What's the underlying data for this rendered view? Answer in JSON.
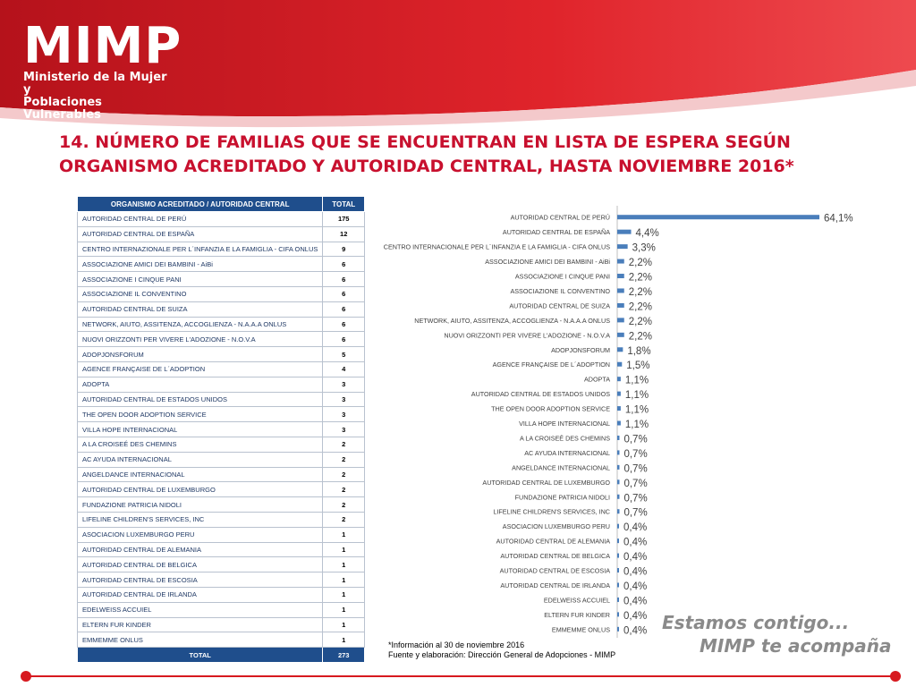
{
  "header": {
    "logo": "MIMP",
    "logo_sub1": "Ministerio de la Mujer y",
    "logo_sub2": "Poblaciones Vulnerables",
    "title_line1": "14. NÚMERO DE FAMILIAS QUE SE ENCUENTRAN EN LISTA DE ESPERA SEGÚN",
    "title_line2": "ORGANISMO ACREDITADO Y AUTORIDAD CENTRAL, HASTA NOVIEMBRE 2016*"
  },
  "table": {
    "col1_header": "ORGANISMO ACREDITADO / AUTORIDAD CENTRAL",
    "col2_header": "TOTAL",
    "rows": [
      {
        "name": "AUTORIDAD CENTRAL DE PERÚ",
        "total": "175"
      },
      {
        "name": "AUTORIDAD CENTRAL DE ESPAÑA",
        "total": "12"
      },
      {
        "name": "CENTRO INTERNAZIONALE PER L´INFANZIA E LA FAMIGLIA - CIFA ONLUS",
        "total": "9"
      },
      {
        "name": "ASSOCIAZIONE AMICI DEI BAMBINI - AiBi",
        "total": "6"
      },
      {
        "name": "ASSOCIAZIONE I CINQUE PANI",
        "total": "6"
      },
      {
        "name": "ASSOCIAZIONE IL CONVENTINO",
        "total": "6"
      },
      {
        "name": "AUTORIDAD CENTRAL DE SUIZA",
        "total": "6"
      },
      {
        "name": "NETWORK, AIUTO, ASSITENZA, ACCOGLIENZA - N.A.A.A ONLUS",
        "total": "6"
      },
      {
        "name": "NUOVI ORIZZONTI PER VIVERE L'ADOZIONE -  N.O.V.A",
        "total": "6"
      },
      {
        "name": "ADOPJONSFORUM",
        "total": "5"
      },
      {
        "name": "AGENCE FRANÇAISE DE L´ADOPTION",
        "total": "4"
      },
      {
        "name": "ADOPTA",
        "total": "3"
      },
      {
        "name": "AUTORIDAD CENTRAL DE ESTADOS UNIDOS",
        "total": "3"
      },
      {
        "name": "THE OPEN DOOR ADOPTION SERVICE",
        "total": "3"
      },
      {
        "name": "VILLA HOPE INTERNACIONAL",
        "total": "3"
      },
      {
        "name": "A LA CROISEÉ DES CHEMINS",
        "total": "2"
      },
      {
        "name": "AC AYUDA INTERNACIONAL",
        "total": "2"
      },
      {
        "name": "ANGELDANCE INTERNACIONAL",
        "total": "2"
      },
      {
        "name": "AUTORIDAD CENTRAL DE LUXEMBURGO",
        "total": "2"
      },
      {
        "name": "FUNDAZIONE PATRICIA NIDOLI",
        "total": "2"
      },
      {
        "name": "LIFELINE CHILDREN'S SERVICES, INC",
        "total": "2"
      },
      {
        "name": "ASOCIACION LUXEMBURGO PERU",
        "total": "1"
      },
      {
        "name": "AUTORIDAD CENTRAL DE ALEMANIA",
        "total": "1"
      },
      {
        "name": "AUTORIDAD CENTRAL DE BELGICA",
        "total": "1"
      },
      {
        "name": "AUTORIDAD CENTRAL DE ESCOSIA",
        "total": "1"
      },
      {
        "name": "AUTORIDAD CENTRAL DE IRLANDA",
        "total": "1"
      },
      {
        "name": "EDELWEISS ACCUIEL",
        "total": "1"
      },
      {
        "name": "ELTERN FUR KINDER",
        "total": "1"
      },
      {
        "name": "EMMEMME ONLUS",
        "total": "1"
      }
    ],
    "total_label": "TOTAL",
    "total_value": "273"
  },
  "chart_data": {
    "type": "bar",
    "orientation": "horizontal",
    "categories": [
      "AUTORIDAD CENTRAL DE PERÚ",
      "AUTORIDAD CENTRAL DE ESPAÑA",
      "CENTRO INTERNACIONALE PER L´INFANZIA E LA FAMIGLIA - CIFA ONLUS",
      "ASSOCIAZIONE AMICI DEI BAMBINI - AiBi",
      "ASSOCIAZIONE I CINQUE PANI",
      "ASSOCIAZIONE IL CONVENTINO",
      "AUTORIDAD CENTRAL DE SUIZA",
      "NETWORK, AIUTO, ASSITENZA, ACCOGLIENZA - N.A.A.A ONLUS",
      "NUOVI ORIZZONTI PER VIVERE L'ADOZIONE -  N.O.V.A",
      "ADOPJONSFORUM",
      "AGENCE FRANÇAISE DE L´ADOPTION",
      "ADOPTA",
      "AUTORIDAD CENTRAL DE ESTADOS UNIDOS",
      "THE OPEN DOOR ADOPTION SERVICE",
      "VILLA HOPE INTERNACIONAL",
      "A LA CROISEÉ DES CHEMINS",
      "AC AYUDA INTERNACIONAL",
      "ANGELDANCE INTERNACIONAL",
      "AUTORIDAD CENTRAL DE LUXEMBURGO",
      "FUNDAZIONE PATRICIA NIDOLI",
      "LIFELINE CHILDREN'S SERVICES, INC",
      "ASOCIACION LUXEMBURGO PERU",
      "AUTORIDAD CENTRAL DE ALEMANIA",
      "AUTORIDAD CENTRAL DE BELGICA",
      "AUTORIDAD CENTRAL DE ESCOSIA",
      "AUTORIDAD CENTRAL DE IRLANDA",
      "EDELWEISS ACCUIEL",
      "ELTERN FUR KINDER",
      "EMMEMME ONLUS"
    ],
    "values": [
      64.1,
      4.4,
      3.3,
      2.2,
      2.2,
      2.2,
      2.2,
      2.2,
      2.2,
      1.8,
      1.5,
      1.1,
      1.1,
      1.1,
      1.1,
      0.7,
      0.7,
      0.7,
      0.7,
      0.7,
      0.7,
      0.4,
      0.4,
      0.4,
      0.4,
      0.4,
      0.4,
      0.4,
      0.4
    ],
    "value_labels": [
      "64,1%",
      "4,4%",
      "3,3%",
      "2,2%",
      "2,2%",
      "2,2%",
      "2,2%",
      "2,2%",
      "2,2%",
      "1,8%",
      "1,5%",
      "1,1%",
      "1,1%",
      "1,1%",
      "1,1%",
      "0,7%",
      "0,7%",
      "0,7%",
      "0,7%",
      "0,7%",
      "0,7%",
      "0,4%",
      "0,4%",
      "0,4%",
      "0,4%",
      "0,4%",
      "0,4%",
      "0,4%",
      "0,4%"
    ],
    "title": "",
    "xlabel": "",
    "ylabel": "",
    "xlim": [
      0,
      64.1
    ],
    "grid": false,
    "bar_color": "#4a7ebb"
  },
  "footnote": {
    "line1": "*Información al 30 de noviembre 2016",
    "line2": "Fuente y elaboración: Dirección General de Adopciones - MIMP"
  },
  "slogan": {
    "line1": "Estamos contigo...",
    "line2": "MIMP te acompaña"
  },
  "colors": {
    "brand_red": "#d7191f",
    "title_red": "#c8102e",
    "table_header": "#1f4e8c",
    "bar": "#4a7ebb"
  }
}
